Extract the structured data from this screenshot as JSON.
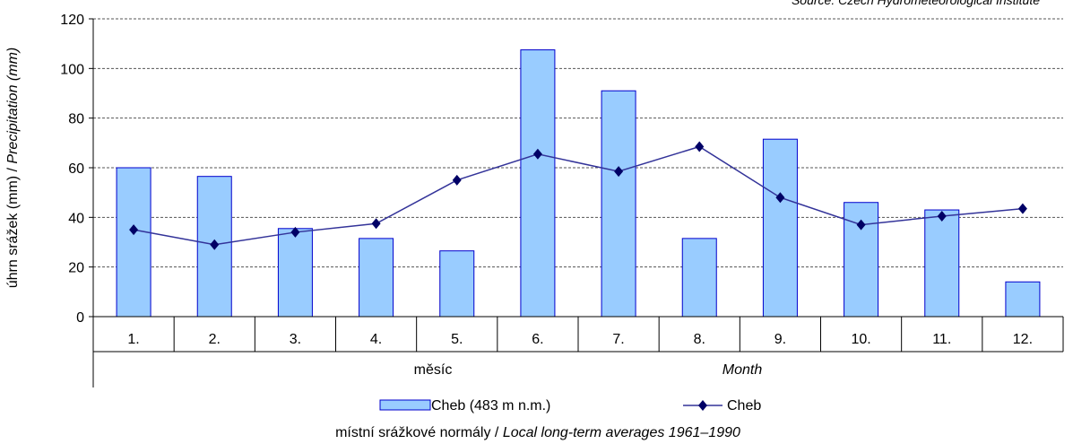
{
  "chart_data": {
    "type": "bar",
    "source": "Source: Czech Hydrometeorological Institute",
    "ylabel_cz": "úhrn srážek (mm) / ",
    "ylabel_en": "Precipitation (mm)",
    "xlabel_cz": "měsíc",
    "xlabel_en": "Month",
    "footnote_cz": "místní srážkové normály / ",
    "footnote_en": "Local long-term averages 1961–1990",
    "categories": [
      "1.",
      "2.",
      "3.",
      "4.",
      "5.",
      "6.",
      "7.",
      "8.",
      "9.",
      "10.",
      "11.",
      "12."
    ],
    "yticks": [
      "0",
      "20",
      "40",
      "60",
      "80",
      "100",
      "120"
    ],
    "ylim": [
      0,
      120
    ],
    "grid": true,
    "legend_position": "bottom",
    "series": [
      {
        "name": "Cheb (483 m n.m.)",
        "kind": "bar",
        "color": "#99ccff",
        "edge": "#0000cc",
        "values": [
          60,
          56.5,
          35.5,
          31.5,
          26.5,
          107.5,
          91,
          31.5,
          71.5,
          46,
          43,
          14
        ]
      },
      {
        "name": "Cheb",
        "kind": "line",
        "color": "#333399",
        "marker": "diamond",
        "values": [
          35,
          29,
          34,
          37.5,
          55,
          65.5,
          58.5,
          68.5,
          48,
          37,
          40.5,
          43.5
        ]
      }
    ]
  }
}
